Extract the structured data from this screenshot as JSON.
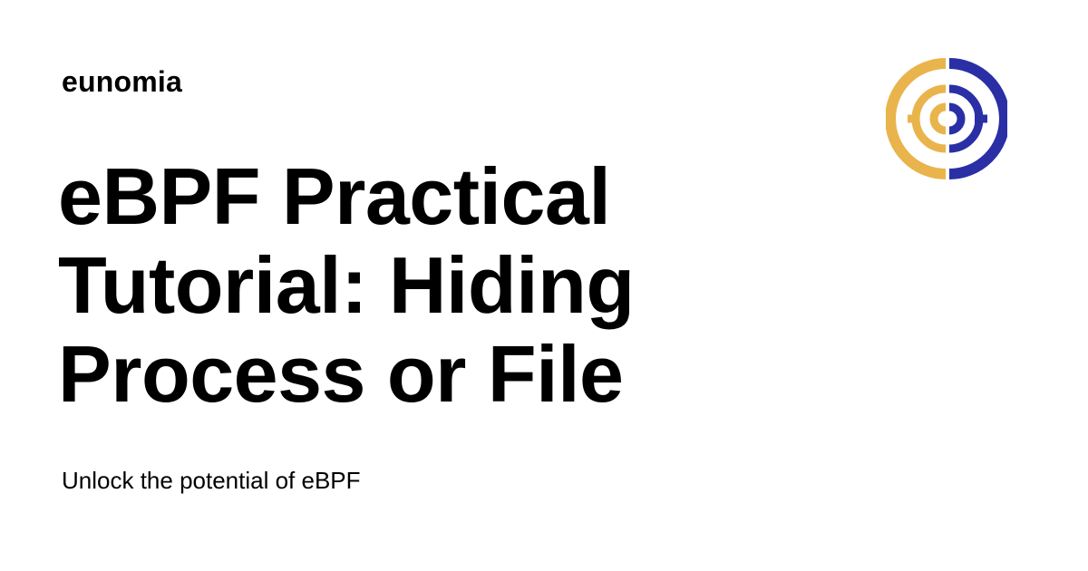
{
  "site": {
    "name": "eunomia"
  },
  "article": {
    "title": "eBPF Practical Tutorial: Hiding Process or File",
    "subtitle": "Unlock the potential of eBPF"
  },
  "logo": {
    "icon": "eunomia-logo-icon",
    "colors": {
      "left": "#E9B44C",
      "right": "#2A2FA6"
    }
  },
  "colors": {
    "background": "#FFFFFF",
    "text": "#000000"
  }
}
